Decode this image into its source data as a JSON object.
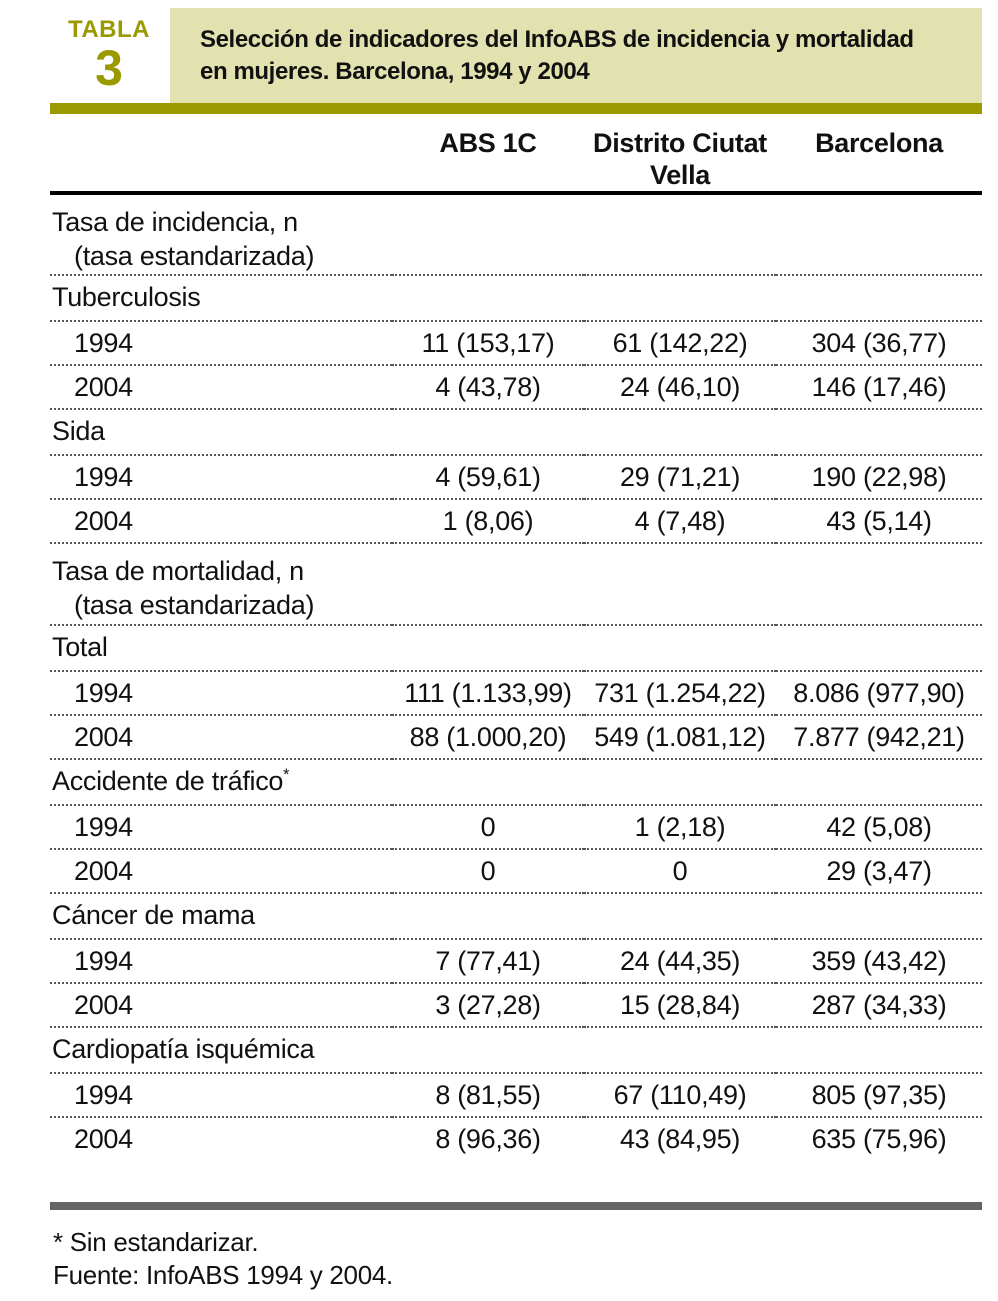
{
  "page": {
    "label": {
      "kicker": "TABLA",
      "number": "3"
    },
    "title": {
      "line1": "Selección de indicadores del InfoABS de incidencia y mortalidad",
      "line2": "en mujeres. Barcelona, 1994 y 2004"
    },
    "colors": {
      "olive": "#9a9a00",
      "title_bg": "#e2e2b0",
      "bottom_bar": "#666666"
    }
  },
  "table": {
    "columns": [
      "ABS 1C",
      "Distrito Ciutat Vella",
      "Barcelona"
    ],
    "rows": [
      {
        "type": "section2",
        "label": "Tasa de incidencia, n",
        "sub": "(tasa estandarizada)"
      },
      {
        "type": "section",
        "label": "Tuberculosis"
      },
      {
        "type": "year",
        "label": "1994",
        "values": [
          "11 (153,17)",
          "61 (142,22)",
          "304 (36,77)"
        ]
      },
      {
        "type": "year",
        "label": "2004",
        "values": [
          "4 (43,78)",
          "24 (46,10)",
          "146 (17,46)"
        ]
      },
      {
        "type": "section",
        "label": "Sida"
      },
      {
        "type": "year",
        "label": "1994",
        "values": [
          "4 (59,61)",
          "29 (71,21)",
          "190 (22,98)"
        ]
      },
      {
        "type": "year",
        "label": "2004",
        "values": [
          "1 (8,06)",
          "4 (7,48)",
          "43 (5,14)"
        ]
      },
      {
        "type": "section2",
        "label": "Tasa de mortalidad, n",
        "sub": "(tasa estandarizada)"
      },
      {
        "type": "section",
        "label": "Total"
      },
      {
        "type": "year",
        "label": "1994",
        "values": [
          "111 (1.133,99)",
          "731 (1.254,22)",
          "8.086 (977,90)"
        ]
      },
      {
        "type": "year",
        "label": "2004",
        "values": [
          "88 (1.000,20)",
          "549 (1.081,12)",
          "7.877 (942,21)"
        ]
      },
      {
        "type": "section",
        "label": "Accidente de tráfico",
        "note": "*"
      },
      {
        "type": "year",
        "label": "1994",
        "values": [
          "0",
          "1 (2,18)",
          "42 (5,08)"
        ]
      },
      {
        "type": "year",
        "label": "2004",
        "values": [
          "0",
          "0",
          "29 (3,47)"
        ]
      },
      {
        "type": "section",
        "label": "Cáncer de mama"
      },
      {
        "type": "year",
        "label": "1994",
        "values": [
          "7 (77,41)",
          "24 (44,35)",
          "359 (43,42)"
        ]
      },
      {
        "type": "year",
        "label": "2004",
        "values": [
          "3 (27,28)",
          "15 (28,84)",
          "287 (34,33)"
        ]
      },
      {
        "type": "section",
        "label": "Cardiopatía isquémica"
      },
      {
        "type": "year",
        "label": "1994",
        "values": [
          "8 (81,55)",
          "67 (110,49)",
          "805 (97,35)"
        ]
      },
      {
        "type": "year",
        "label": "2004",
        "values": [
          "8 (96,36)",
          "43 (84,95)",
          "635 (75,96)"
        ]
      }
    ]
  },
  "footnotes": [
    "* Sin estandarizar.",
    "Fuente: InfoABS 1994 y 2004."
  ]
}
